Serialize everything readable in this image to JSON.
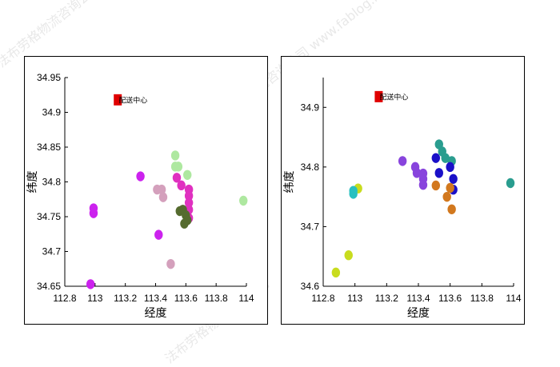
{
  "watermark": {
    "text_1": "法布劳格物流咨询公司 www.fablog.net",
    "text_2": "法布劳格物流咨询公司 www.fablog.net",
    "text_3": "www.fablog.net",
    "text_4": "法布劳格物流咨询公司"
  },
  "chart_data": [
    {
      "type": "scatter",
      "title": "",
      "xlabel": "经度",
      "ylabel": "纬度",
      "xlim": [
        112.8,
        114.0
      ],
      "ylim": [
        34.65,
        34.95
      ],
      "xticks": [
        "112.8",
        "113",
        "113.2",
        "113.4",
        "113.6",
        "113.8",
        "114"
      ],
      "yticks": [
        "34.65",
        "34.7",
        "34.75",
        "34.8",
        "34.85",
        "34.9",
        "34.95"
      ],
      "grid": false,
      "depot": {
        "x": 113.15,
        "y": 34.918,
        "label": "配送中心",
        "color": "#e00000"
      },
      "points": [
        {
          "x": 112.97,
          "y": 34.653,
          "color": "#cc22ee"
        },
        {
          "x": 112.99,
          "y": 34.762,
          "color": "#cc22ee"
        },
        {
          "x": 112.99,
          "y": 34.755,
          "color": "#cc22ee"
        },
        {
          "x": 113.3,
          "y": 34.808,
          "color": "#cc22ee"
        },
        {
          "x": 113.42,
          "y": 34.724,
          "color": "#cc22ee"
        },
        {
          "x": 113.41,
          "y": 34.789,
          "color": "#d4a0bc"
        },
        {
          "x": 113.44,
          "y": 34.789,
          "color": "#d4a0bc"
        },
        {
          "x": 113.45,
          "y": 34.778,
          "color": "#d4a0bc"
        },
        {
          "x": 113.5,
          "y": 34.682,
          "color": "#d4a0bc"
        },
        {
          "x": 113.53,
          "y": 34.838,
          "color": "#aee8a0"
        },
        {
          "x": 113.53,
          "y": 34.822,
          "color": "#aee8a0"
        },
        {
          "x": 113.55,
          "y": 34.822,
          "color": "#aee8a0"
        },
        {
          "x": 113.61,
          "y": 34.81,
          "color": "#aee8a0"
        },
        {
          "x": 113.98,
          "y": 34.773,
          "color": "#aee8a0"
        },
        {
          "x": 113.54,
          "y": 34.806,
          "color": "#e030c0"
        },
        {
          "x": 113.57,
          "y": 34.795,
          "color": "#e030c0"
        },
        {
          "x": 113.62,
          "y": 34.789,
          "color": "#e030c0"
        },
        {
          "x": 113.62,
          "y": 34.78,
          "color": "#e030c0"
        },
        {
          "x": 113.62,
          "y": 34.77,
          "color": "#e030c0"
        },
        {
          "x": 113.62,
          "y": 34.76,
          "color": "#e030c0"
        },
        {
          "x": 113.62,
          "y": 34.748,
          "color": "#e030c0"
        },
        {
          "x": 113.56,
          "y": 34.758,
          "color": "#556b2f"
        },
        {
          "x": 113.58,
          "y": 34.76,
          "color": "#556b2f"
        },
        {
          "x": 113.6,
          "y": 34.752,
          "color": "#556b2f"
        },
        {
          "x": 113.61,
          "y": 34.745,
          "color": "#556b2f"
        },
        {
          "x": 113.59,
          "y": 34.74,
          "color": "#556b2f"
        }
      ]
    },
    {
      "type": "scatter",
      "title": "",
      "xlabel": "经度",
      "ylabel": "纬度",
      "xlim": [
        112.8,
        114.0
      ],
      "ylim": [
        34.6,
        34.95
      ],
      "xticks": [
        "112.8",
        "113",
        "113.2",
        "113.4",
        "113.6",
        "113.8",
        "114"
      ],
      "yticks": [
        "34.6",
        "34.7",
        "34.8",
        "34.9"
      ],
      "grid": false,
      "depot": {
        "x": 113.15,
        "y": 34.918,
        "label": "配送中心",
        "color": "#e00000"
      },
      "points": [
        {
          "x": 112.88,
          "y": 34.623,
          "color": "#c8dc1e"
        },
        {
          "x": 112.96,
          "y": 34.652,
          "color": "#c8dc1e"
        },
        {
          "x": 113.02,
          "y": 34.764,
          "color": "#c8dc1e"
        },
        {
          "x": 112.99,
          "y": 34.76,
          "color": "#28c0c0"
        },
        {
          "x": 112.99,
          "y": 34.755,
          "color": "#28c0c0"
        },
        {
          "x": 113.3,
          "y": 34.81,
          "color": "#8844dd"
        },
        {
          "x": 113.38,
          "y": 34.8,
          "color": "#8844dd"
        },
        {
          "x": 113.39,
          "y": 34.79,
          "color": "#8844dd"
        },
        {
          "x": 113.43,
          "y": 34.789,
          "color": "#8844dd"
        },
        {
          "x": 113.43,
          "y": 34.78,
          "color": "#8844dd"
        },
        {
          "x": 113.43,
          "y": 34.77,
          "color": "#8844dd"
        },
        {
          "x": 113.53,
          "y": 34.838,
          "color": "#2a9d8f"
        },
        {
          "x": 113.55,
          "y": 34.826,
          "color": "#2a9d8f"
        },
        {
          "x": 113.57,
          "y": 34.815,
          "color": "#2a9d8f"
        },
        {
          "x": 113.61,
          "y": 34.81,
          "color": "#2a9d8f"
        },
        {
          "x": 113.98,
          "y": 34.773,
          "color": "#2a9d8f"
        },
        {
          "x": 113.51,
          "y": 34.815,
          "color": "#1a10c8"
        },
        {
          "x": 113.53,
          "y": 34.79,
          "color": "#1a10c8"
        },
        {
          "x": 113.6,
          "y": 34.8,
          "color": "#1a10c8"
        },
        {
          "x": 113.62,
          "y": 34.78,
          "color": "#1a10c8"
        },
        {
          "x": 113.62,
          "y": 34.762,
          "color": "#1a10c8"
        },
        {
          "x": 113.51,
          "y": 34.769,
          "color": "#d2781e"
        },
        {
          "x": 113.58,
          "y": 34.75,
          "color": "#d2781e"
        },
        {
          "x": 113.6,
          "y": 34.765,
          "color": "#d2781e"
        },
        {
          "x": 113.61,
          "y": 34.729,
          "color": "#d2781e"
        }
      ]
    }
  ]
}
